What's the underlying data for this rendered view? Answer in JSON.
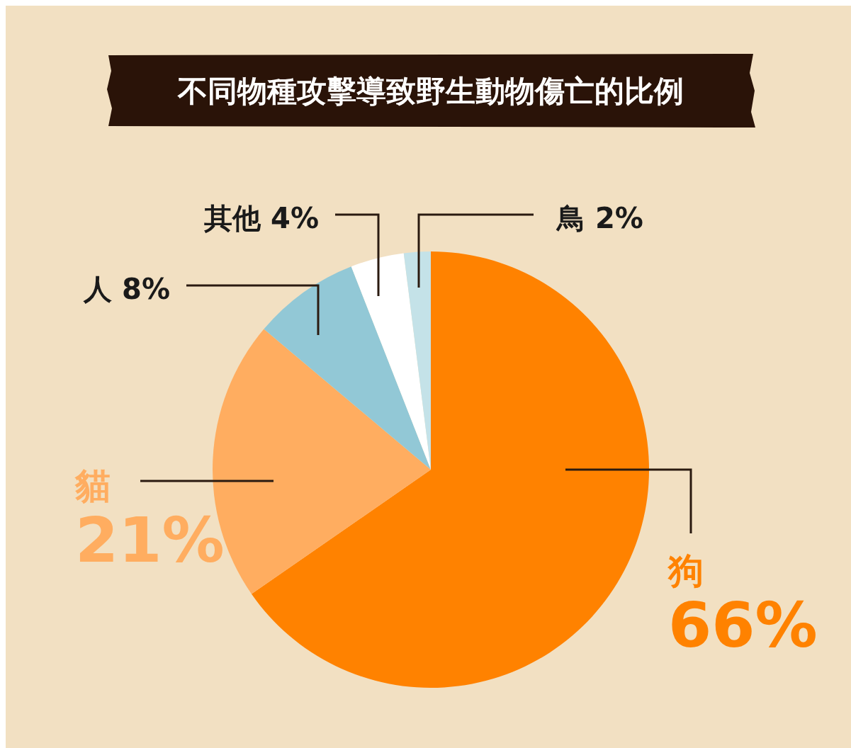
{
  "chart_data": {
    "type": "pie",
    "title": "不同物種攻擊導致野生動物傷亡的比例",
    "categories": [
      "狗",
      "貓",
      "人",
      "其他",
      "鳥"
    ],
    "values": [
      66,
      21,
      8,
      4,
      2
    ],
    "value_labels": [
      "66%",
      "21%",
      "8%",
      "4%",
      "2%"
    ],
    "colors": [
      "#ff8200",
      "#ffad60",
      "#92c8d6",
      "#ffffff",
      "#c4e2e8"
    ]
  }
}
